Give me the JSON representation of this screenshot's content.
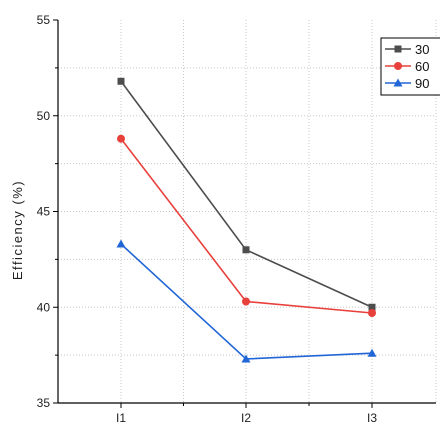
{
  "chart_data": {
    "type": "line",
    "categories": [
      "I1",
      "I2",
      "I3"
    ],
    "ylabel": "Efficiency (%)",
    "xlabel": "",
    "ylim": [
      35,
      55
    ],
    "yticks": [
      35,
      40,
      45,
      50,
      55
    ],
    "grid": true,
    "legend": "top-right",
    "series": [
      {
        "name": "30",
        "values": [
          51.8,
          43.0,
          40.0
        ],
        "color": "#4d4d4d",
        "marker": "square"
      },
      {
        "name": "60",
        "values": [
          48.8,
          40.3,
          39.7
        ],
        "color": "#e8403a",
        "marker": "circle"
      },
      {
        "name": "90",
        "values": [
          43.3,
          37.3,
          37.6
        ],
        "color": "#2166d6",
        "marker": "triangle"
      }
    ]
  }
}
